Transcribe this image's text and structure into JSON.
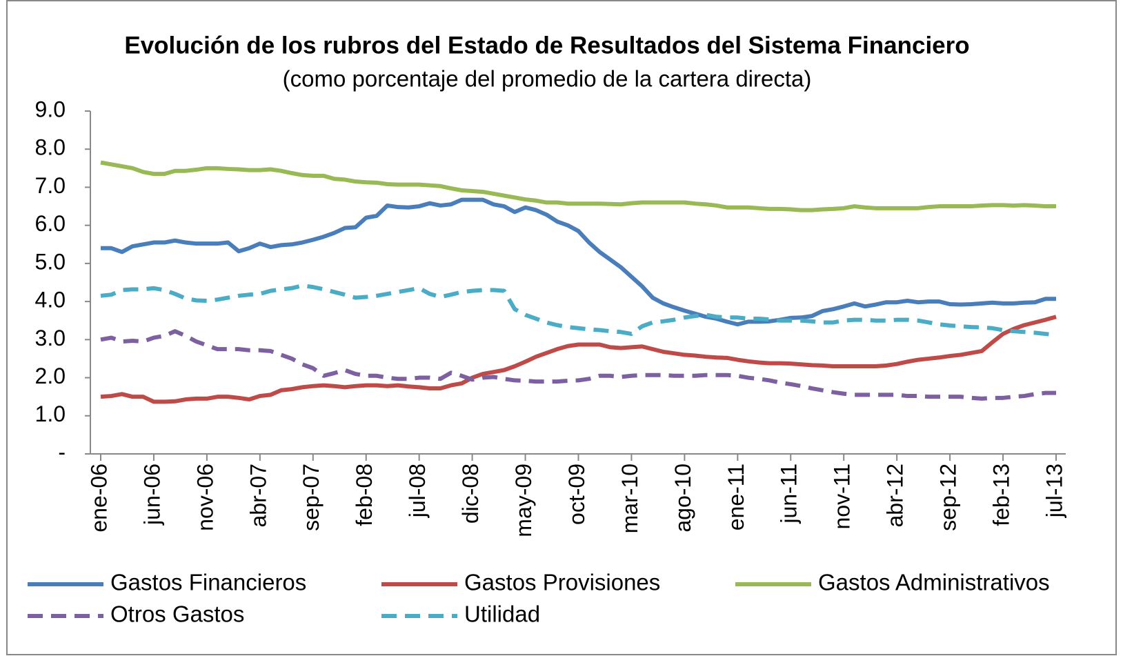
{
  "chart_data": {
    "type": "line",
    "title": "Evolución de los rubros del Estado de Resultados del Sistema Financiero",
    "subtitle": "(como porcentaje del promedio de la cartera directa)",
    "categories": [
      "ene-06",
      null,
      null,
      null,
      null,
      "jun-06",
      null,
      null,
      null,
      null,
      "nov-06",
      null,
      null,
      null,
      null,
      "abr-07",
      null,
      null,
      null,
      null,
      "sep-07",
      null,
      null,
      null,
      null,
      "feb-08",
      null,
      null,
      null,
      null,
      "jul-08",
      null,
      null,
      null,
      null,
      "dic-08",
      null,
      null,
      null,
      null,
      "may-09",
      null,
      null,
      null,
      null,
      "oct-09",
      null,
      null,
      null,
      null,
      "mar-10",
      null,
      null,
      null,
      null,
      "ago-10",
      null,
      null,
      null,
      null,
      "ene-11",
      null,
      null,
      null,
      null,
      "jun-11",
      null,
      null,
      null,
      null,
      "nov-11",
      null,
      null,
      null,
      null,
      "abr-12",
      null,
      null,
      null,
      null,
      "sep-12",
      null,
      null,
      null,
      null,
      "feb-13",
      null,
      null,
      null,
      null,
      "jul-13"
    ],
    "ylim": [
      0,
      9
    ],
    "yticks": [
      {
        "value": 0,
        "label": "-"
      },
      {
        "value": 1,
        "label": "1.0"
      },
      {
        "value": 2,
        "label": "2.0"
      },
      {
        "value": 3,
        "label": "3.0"
      },
      {
        "value": 4,
        "label": "4.0"
      },
      {
        "value": 5,
        "label": "5.0"
      },
      {
        "value": 6,
        "label": "6.0"
      },
      {
        "value": 7,
        "label": "7.0"
      },
      {
        "value": 8,
        "label": "8.0"
      },
      {
        "value": 9,
        "label": "9.0"
      }
    ],
    "series": [
      {
        "name": "Gastos Financieros",
        "color": "#4a7ebb",
        "dashed": false,
        "values": [
          5.4,
          5.4,
          5.3,
          5.45,
          5.5,
          5.55,
          5.55,
          5.6,
          5.55,
          5.52,
          5.52,
          5.52,
          5.55,
          5.32,
          5.4,
          5.52,
          5.43,
          5.48,
          5.5,
          5.55,
          5.62,
          5.7,
          5.8,
          5.93,
          5.95,
          6.2,
          6.25,
          6.52,
          6.48,
          6.47,
          6.5,
          6.58,
          6.52,
          6.55,
          6.67,
          6.67,
          6.67,
          6.55,
          6.5,
          6.35,
          6.47,
          6.4,
          6.28,
          6.1,
          6.0,
          5.85,
          5.55,
          5.3,
          5.1,
          4.9,
          4.65,
          4.4,
          4.1,
          3.95,
          3.85,
          3.76,
          3.68,
          3.6,
          3.55,
          3.47,
          3.4,
          3.47,
          3.47,
          3.48,
          3.52,
          3.57,
          3.58,
          3.62,
          3.75,
          3.8,
          3.87,
          3.95,
          3.87,
          3.92,
          3.98,
          3.98,
          4.02,
          3.98,
          4.0,
          4.0,
          3.93,
          3.92,
          3.93,
          3.95,
          3.97,
          3.95,
          3.95,
          3.97,
          3.98,
          4.07,
          4.07
        ]
      },
      {
        "name": "Gastos Provisiones",
        "color": "#be4b48",
        "dashed": false,
        "values": [
          1.5,
          1.52,
          1.57,
          1.5,
          1.5,
          1.37,
          1.37,
          1.38,
          1.43,
          1.45,
          1.45,
          1.5,
          1.5,
          1.47,
          1.43,
          1.52,
          1.55,
          1.67,
          1.7,
          1.75,
          1.78,
          1.8,
          1.78,
          1.75,
          1.78,
          1.8,
          1.8,
          1.78,
          1.8,
          1.77,
          1.75,
          1.72,
          1.72,
          1.8,
          1.85,
          2.0,
          2.1,
          2.15,
          2.2,
          2.3,
          2.42,
          2.55,
          2.65,
          2.75,
          2.83,
          2.87,
          2.87,
          2.87,
          2.8,
          2.78,
          2.8,
          2.82,
          2.75,
          2.68,
          2.64,
          2.6,
          2.58,
          2.55,
          2.53,
          2.52,
          2.47,
          2.43,
          2.4,
          2.38,
          2.38,
          2.37,
          2.35,
          2.33,
          2.32,
          2.3,
          2.3,
          2.3,
          2.3,
          2.3,
          2.32,
          2.36,
          2.42,
          2.47,
          2.5,
          2.53,
          2.57,
          2.6,
          2.65,
          2.7,
          2.93,
          3.15,
          3.28,
          3.38,
          3.45,
          3.52,
          3.6
        ]
      },
      {
        "name": "Gastos Administrativos",
        "color": "#98b954",
        "dashed": false,
        "values": [
          7.65,
          7.6,
          7.55,
          7.5,
          7.4,
          7.35,
          7.35,
          7.43,
          7.43,
          7.46,
          7.5,
          7.5,
          7.48,
          7.47,
          7.45,
          7.45,
          7.47,
          7.43,
          7.37,
          7.32,
          7.3,
          7.3,
          7.22,
          7.2,
          7.15,
          7.13,
          7.12,
          7.08,
          7.07,
          7.07,
          7.07,
          7.05,
          7.03,
          6.97,
          6.92,
          6.9,
          6.88,
          6.83,
          6.78,
          6.73,
          6.68,
          6.65,
          6.6,
          6.6,
          6.57,
          6.57,
          6.57,
          6.57,
          6.56,
          6.55,
          6.58,
          6.6,
          6.6,
          6.6,
          6.6,
          6.6,
          6.57,
          6.55,
          6.52,
          6.47,
          6.47,
          6.47,
          6.45,
          6.43,
          6.43,
          6.42,
          6.4,
          6.4,
          6.42,
          6.43,
          6.45,
          6.5,
          6.47,
          6.45,
          6.45,
          6.45,
          6.45,
          6.45,
          6.48,
          6.5,
          6.5,
          6.5,
          6.5,
          6.52,
          6.53,
          6.53,
          6.52,
          6.53,
          6.52,
          6.5,
          6.5
        ]
      },
      {
        "name": "Otros Gastos",
        "color": "#7d60a0",
        "dashed": true,
        "values": [
          3.0,
          3.05,
          2.95,
          2.97,
          2.95,
          3.05,
          3.1,
          3.22,
          3.1,
          2.95,
          2.85,
          2.75,
          2.75,
          2.75,
          2.72,
          2.72,
          2.7,
          2.6,
          2.5,
          2.35,
          2.25,
          2.05,
          2.12,
          2.2,
          2.1,
          2.05,
          2.05,
          2.0,
          1.97,
          1.97,
          2.0,
          2.0,
          1.97,
          2.13,
          2.05,
          1.95,
          2.0,
          2.02,
          1.97,
          1.93,
          1.92,
          1.9,
          1.9,
          1.9,
          1.92,
          1.93,
          1.97,
          2.05,
          2.05,
          2.02,
          2.05,
          2.07,
          2.07,
          2.07,
          2.05,
          2.05,
          2.05,
          2.07,
          2.07,
          2.07,
          2.05,
          2.0,
          1.97,
          1.93,
          1.87,
          1.83,
          1.78,
          1.72,
          1.67,
          1.62,
          1.58,
          1.55,
          1.55,
          1.55,
          1.55,
          1.55,
          1.52,
          1.52,
          1.5,
          1.5,
          1.5,
          1.5,
          1.47,
          1.45,
          1.47,
          1.47,
          1.5,
          1.52,
          1.57,
          1.6,
          1.6
        ]
      },
      {
        "name": "Utilidad",
        "color": "#4bacc6",
        "dashed": true,
        "values": [
          4.15,
          4.18,
          4.3,
          4.32,
          4.32,
          4.35,
          4.3,
          4.2,
          4.08,
          4.03,
          4.02,
          4.05,
          4.1,
          4.15,
          4.18,
          4.2,
          4.28,
          4.32,
          4.35,
          4.42,
          4.38,
          4.32,
          4.25,
          4.18,
          4.1,
          4.12,
          4.15,
          4.2,
          4.25,
          4.3,
          4.35,
          4.2,
          4.12,
          4.18,
          4.25,
          4.28,
          4.3,
          4.3,
          4.28,
          3.8,
          3.65,
          3.55,
          3.45,
          3.38,
          3.33,
          3.3,
          3.27,
          3.25,
          3.22,
          3.2,
          3.15,
          3.35,
          3.45,
          3.48,
          3.52,
          3.58,
          3.62,
          3.65,
          3.6,
          3.58,
          3.58,
          3.55,
          3.55,
          3.53,
          3.5,
          3.5,
          3.5,
          3.48,
          3.45,
          3.45,
          3.5,
          3.52,
          3.52,
          3.5,
          3.5,
          3.52,
          3.52,
          3.5,
          3.45,
          3.4,
          3.37,
          3.35,
          3.33,
          3.32,
          3.3,
          3.25,
          3.22,
          3.2,
          3.18,
          3.15,
          3.12
        ]
      }
    ]
  }
}
